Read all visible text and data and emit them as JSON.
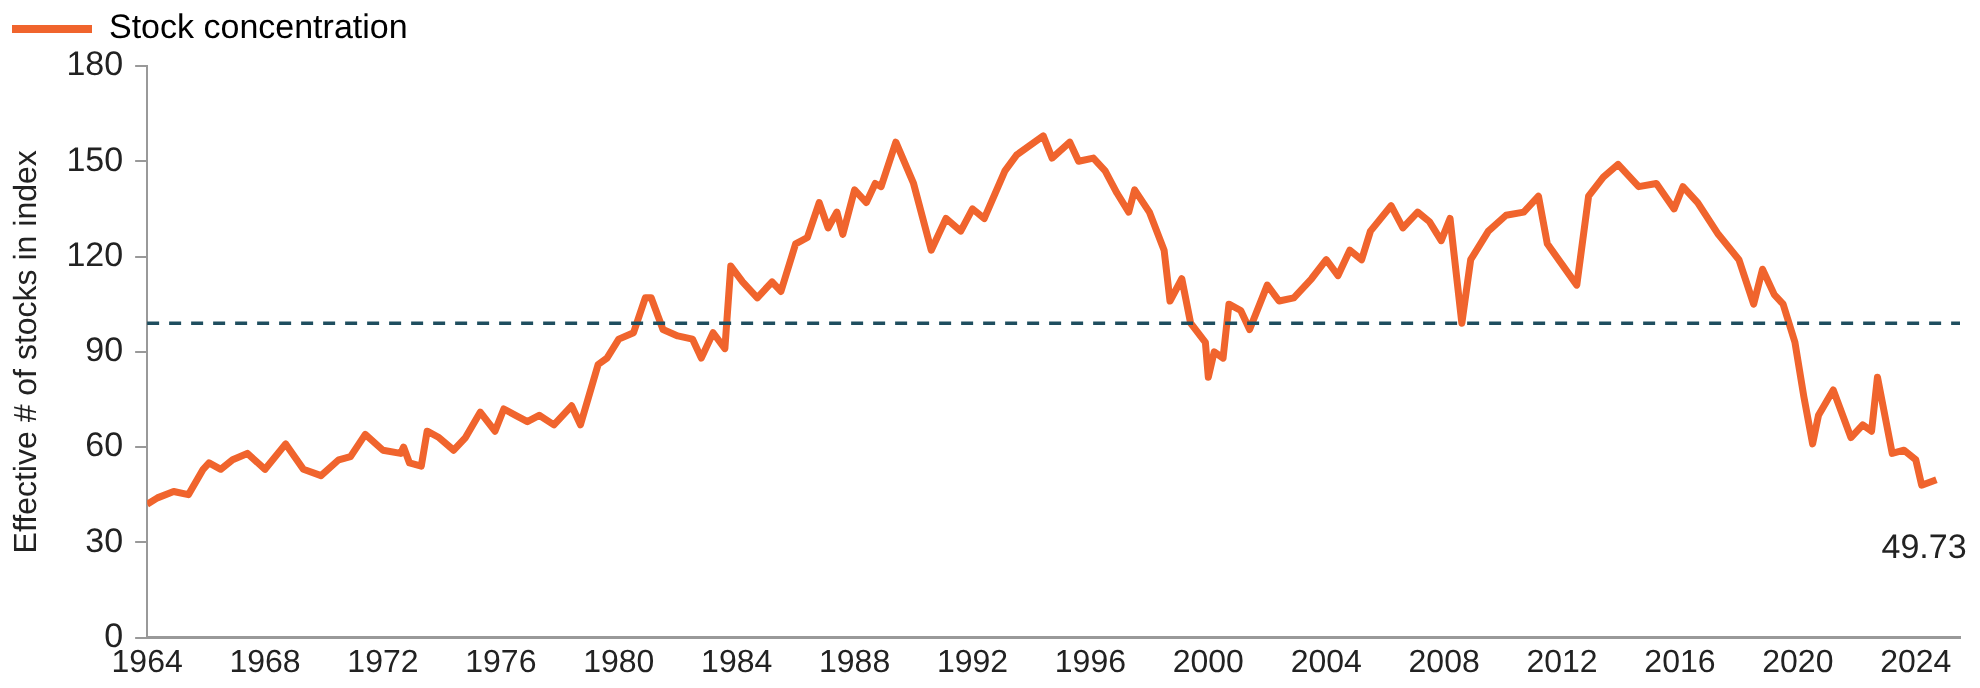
{
  "chart_data": {
    "type": "line",
    "ylabel": "Effective # of stocks in index",
    "xlim": [
      1964,
      2025.5
    ],
    "xticks": [
      1964,
      1968,
      1972,
      1976,
      1980,
      1984,
      1988,
      1992,
      1996,
      2000,
      2004,
      2008,
      2012,
      2016,
      2020,
      2024
    ],
    "ylim": [
      0,
      180
    ],
    "yticks": [
      0,
      30,
      60,
      90,
      120,
      150,
      180
    ],
    "grid": false,
    "legend": "top left",
    "line_style": "solid",
    "x": [
      1964.0,
      1964.35,
      1964.9,
      1965.4,
      1965.9,
      1966.1,
      1966.5,
      1966.9,
      1967.4,
      1968.0,
      1968.7,
      1969.3,
      1969.9,
      1970.5,
      1970.9,
      1971.4,
      1972.0,
      1972.6,
      1972.7,
      1972.9,
      1973.3,
      1973.5,
      1973.9,
      1974.4,
      1974.8,
      1975.3,
      1975.8,
      1976.1,
      1976.5,
      1976.9,
      1977.3,
      1977.8,
      1978.4,
      1978.7,
      1979.3,
      1979.6,
      1980.0,
      1980.5,
      1980.9,
      1981.1,
      1981.5,
      1982.0,
      1982.5,
      1982.8,
      1983.2,
      1983.6,
      1983.8,
      1984.2,
      1984.7,
      1985.2,
      1985.5,
      1986.0,
      1986.4,
      1986.8,
      1987.1,
      1987.4,
      1987.6,
      1988.0,
      1988.4,
      1988.7,
      1988.9,
      1989.4,
      1990.0,
      1990.6,
      1991.1,
      1991.6,
      1992.0,
      1992.4,
      1993.1,
      1993.5,
      1994.4,
      1994.7,
      1995.3,
      1995.6,
      1996.1,
      1996.5,
      1996.9,
      1997.3,
      1997.5,
      1998.0,
      1998.5,
      1998.7,
      1999.1,
      1999.4,
      1999.9,
      2000.0,
      2000.2,
      2000.5,
      2000.7,
      2001.1,
      2001.4,
      2002.0,
      2002.4,
      2002.9,
      2003.5,
      2004.0,
      2004.4,
      2004.8,
      2005.2,
      2005.5,
      2006.2,
      2006.6,
      2007.1,
      2007.5,
      2007.9,
      2008.2,
      2008.6,
      2008.9,
      2009.5,
      2010.1,
      2010.7,
      2011.2,
      2011.5,
      2012.5,
      2012.9,
      2013.4,
      2013.9,
      2014.6,
      2015.2,
      2015.8,
      2016.1,
      2016.6,
      2017.3,
      2018.0,
      2018.5,
      2018.8,
      2019.2,
      2019.5,
      2019.9,
      2020.2,
      2020.5,
      2020.7,
      2021.2,
      2021.8,
      2022.2,
      2022.5,
      2022.7,
      2023.2,
      2023.6,
      2024.0,
      2024.2,
      2024.7
    ],
    "series": [
      {
        "name": "Stock concentration",
        "color": "#f0642d",
        "values": [
          42,
          44,
          46,
          45,
          53,
          55,
          53,
          56,
          58,
          53,
          61,
          53,
          51,
          56,
          57,
          64,
          59,
          58,
          60,
          55,
          54,
          65,
          63,
          59,
          63,
          71,
          65,
          72,
          70,
          68,
          70,
          67,
          73,
          67,
          86,
          88,
          94,
          96,
          107,
          107,
          97,
          95,
          94,
          88,
          96,
          91,
          117,
          112,
          107,
          112,
          109,
          124,
          126,
          137,
          129,
          134,
          127,
          141,
          137,
          143,
          142,
          156,
          143,
          122,
          132,
          128,
          135,
          132,
          147,
          152,
          158,
          151,
          156,
          150,
          151,
          147,
          140,
          134,
          141,
          134,
          122,
          106,
          113,
          99,
          93,
          82,
          90,
          88,
          105,
          103,
          97,
          111,
          106,
          107,
          113,
          119,
          114,
          122,
          119,
          128,
          136,
          129,
          134,
          131,
          125,
          132,
          99,
          119,
          128,
          133,
          134,
          139,
          124,
          111,
          139,
          145,
          149,
          142,
          143,
          135,
          142,
          137,
          127,
          119,
          105,
          116,
          108,
          105,
          93,
          76,
          61,
          70,
          78,
          63,
          67,
          65,
          82,
          58,
          59,
          56,
          48,
          49.73
        ]
      }
    ],
    "ref_lines": [
      {
        "axis": "y",
        "value": 99,
        "color": "#1f4e5f",
        "line_style": "dashed"
      }
    ],
    "annotations": [
      {
        "text": "49.73",
        "x": 2024.7,
        "y": 49.73
      }
    ]
  }
}
